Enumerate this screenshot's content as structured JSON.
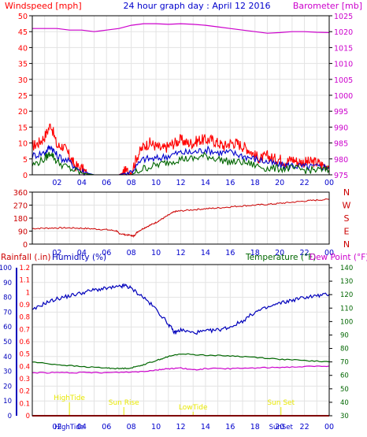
{
  "colors": {
    "wind": "#ff0000",
    "gust": "#dd0000",
    "avg": "#0000cc",
    "baro": "#cc00cc",
    "dir": "#cc0000",
    "humidity": "#0000bb",
    "temperature": "#006600",
    "dewpoint": "#cc00cc",
    "rain": "#ff0000",
    "events": "#e8e800",
    "gridline": "#e3e3e3",
    "frame": "#000000"
  },
  "top": {
    "left_label": "Windspeed [mph]",
    "title": "24 hour graph day : April 12 2016",
    "right_label": "Barometer [mb]",
    "wind_ticks": [
      "0",
      "5",
      "10",
      "15",
      "20",
      "25",
      "30",
      "35",
      "40",
      "45",
      "50"
    ],
    "baro_ticks": [
      "975",
      "980",
      "985",
      "990",
      "995",
      "1000",
      "1005",
      "1010",
      "1015",
      "1020",
      "1025"
    ],
    "hour_ticks": [
      "02",
      "04",
      "06",
      "08",
      "10",
      "12",
      "14",
      "16",
      "18",
      "20",
      "22",
      "00"
    ]
  },
  "mid": {
    "deg_ticks": [
      "0",
      "90",
      "180",
      "270",
      "360"
    ],
    "compass": [
      "N",
      "W",
      "S",
      "E",
      "N"
    ],
    "hour_ticks": [
      "02",
      "04",
      "06",
      "08",
      "10",
      "12",
      "14",
      "16",
      "18",
      "20",
      "22",
      "00"
    ]
  },
  "bottom": {
    "label_rain": "Rainfall (.in)",
    "label_hum": "Humidity (%)",
    "label_temp": "Temperature (°F)",
    "label_dew": "Dew Point (°F)",
    "rain_ticks": [
      "0",
      "0.1",
      "0.2",
      "0.3",
      "0.4",
      "0.5",
      "0.6",
      "0.7",
      "0.8",
      "0.9",
      "1",
      "1.1",
      "1.2"
    ],
    "hum_ticks": [
      "0",
      "10",
      "20",
      "30",
      "40",
      "50",
      "60",
      "70",
      "80",
      "90",
      "100"
    ],
    "temp_ticks": [
      "30",
      "40",
      "50",
      "60",
      "70",
      "80",
      "90",
      "100",
      "110",
      "120",
      "130",
      "140"
    ],
    "hour_ticks": [
      "02",
      "04",
      "06",
      "08",
      "10",
      "12",
      "14",
      "16",
      "18",
      "20",
      "22",
      "00"
    ],
    "events": [
      {
        "label": "HighTide",
        "hour": 3.0,
        "row": 0
      },
      {
        "label": "Sun Rise",
        "hour": 7.4,
        "row": 1
      },
      {
        "label": "LowTide",
        "hour": 13.0,
        "row": 2
      },
      {
        "label": "Sun Set",
        "hour": 20.1,
        "row": 1
      }
    ],
    "bottom_events": [
      {
        "label": "HighTide",
        "hour": 3.0
      },
      {
        "label": "SunSet",
        "hour": 20.1
      }
    ]
  },
  "chart_data": [
    {
      "type": "line",
      "title": "24 hour graph day : April 12 2016",
      "xlabel": "",
      "ylabel": "Windspeed [mph]",
      "y2label": "Barometer [mb]",
      "ylim": [
        0,
        50
      ],
      "y2lim": [
        975,
        1025
      ],
      "series": [
        {
          "name": "Windspeed [mph]",
          "axis": "left",
          "points": [
            [
              0,
              9
            ],
            [
              0.5,
              10
            ],
            [
              1,
              12
            ],
            [
              1.5,
              16
            ],
            [
              2,
              9
            ],
            [
              2.5,
              9
            ],
            [
              3,
              6
            ],
            [
              3.4,
              3
            ],
            [
              4,
              2
            ],
            [
              4.5,
              0
            ],
            [
              5,
              0
            ],
            [
              6,
              0
            ],
            [
              7,
              0
            ],
            [
              7.5,
              1
            ],
            [
              8,
              1
            ],
            [
              8.5,
              6
            ],
            [
              9,
              9
            ],
            [
              9.5,
              10
            ],
            [
              10,
              9
            ],
            [
              10.5,
              8
            ],
            [
              11,
              9
            ],
            [
              11.5,
              10
            ],
            [
              12,
              11
            ],
            [
              12.5,
              10
            ],
            [
              13,
              10
            ],
            [
              13.5,
              11
            ],
            [
              14,
              11
            ],
            [
              14.5,
              11
            ],
            [
              15,
              10
            ],
            [
              15.5,
              9
            ],
            [
              16,
              10
            ],
            [
              16.5,
              10
            ],
            [
              17,
              9
            ],
            [
              17.5,
              8
            ],
            [
              18,
              6
            ],
            [
              18.5,
              5
            ],
            [
              19,
              6
            ],
            [
              19.5,
              5
            ],
            [
              20,
              5
            ],
            [
              20.5,
              4
            ],
            [
              21,
              5
            ],
            [
              21.5,
              4
            ],
            [
              22,
              4
            ],
            [
              22.5,
              4
            ],
            [
              23,
              4
            ],
            [
              23.5,
              3
            ],
            [
              24,
              3
            ]
          ]
        },
        {
          "name": "Average",
          "axis": "left",
          "points": [
            [
              0,
              6
            ],
            [
              1,
              7
            ],
            [
              1.5,
              9
            ],
            [
              2,
              6
            ],
            [
              3,
              4
            ],
            [
              4,
              1
            ],
            [
              5,
              0
            ],
            [
              7,
              0
            ],
            [
              8,
              1
            ],
            [
              9,
              5
            ],
            [
              10,
              5
            ],
            [
              11,
              6
            ],
            [
              12,
              7
            ],
            [
              13,
              7
            ],
            [
              14,
              8
            ],
            [
              15,
              7
            ],
            [
              16,
              7
            ],
            [
              17,
              6
            ],
            [
              18,
              5
            ],
            [
              19,
              4
            ],
            [
              20,
              3
            ],
            [
              21,
              3
            ],
            [
              22,
              2.5
            ],
            [
              23,
              2.5
            ],
            [
              24,
              2.5
            ]
          ]
        },
        {
          "name": "Gust",
          "axis": "left",
          "points": [
            [
              0,
              3
            ],
            [
              1,
              5
            ],
            [
              1.5,
              7
            ],
            [
              2,
              4
            ],
            [
              3,
              2
            ],
            [
              4,
              0.5
            ],
            [
              5,
              0
            ],
            [
              8,
              0
            ],
            [
              9,
              2
            ],
            [
              10,
              3
            ],
            [
              11,
              4
            ],
            [
              12,
              5
            ],
            [
              13,
              5
            ],
            [
              14,
              6
            ],
            [
              15,
              5
            ],
            [
              16,
              4
            ],
            [
              17,
              4
            ],
            [
              18,
              3
            ],
            [
              19,
              2
            ],
            [
              20,
              2
            ],
            [
              21,
              2
            ],
            [
              22,
              1.5
            ],
            [
              23,
              1.5
            ],
            [
              24,
              1.5
            ]
          ]
        },
        {
          "name": "Barometer [mb]",
          "axis": "right",
          "points": [
            [
              0,
              1021
            ],
            [
              1,
              1021
            ],
            [
              2,
              1021
            ],
            [
              3,
              1020.5
            ],
            [
              4,
              1020.5
            ],
            [
              5,
              1020
            ],
            [
              6,
              1020.5
            ],
            [
              7,
              1021
            ],
            [
              8,
              1022
            ],
            [
              9,
              1022.5
            ],
            [
              10,
              1022.5
            ],
            [
              11,
              1022.3
            ],
            [
              12,
              1022.5
            ],
            [
              13,
              1022.3
            ],
            [
              14,
              1022
            ],
            [
              15,
              1021.5
            ],
            [
              16,
              1021
            ],
            [
              17,
              1020.5
            ],
            [
              18,
              1020
            ],
            [
              19,
              1019.5
            ],
            [
              20,
              1019.7
            ],
            [
              21,
              1020
            ],
            [
              22,
              1020
            ],
            [
              23,
              1019.8
            ],
            [
              24,
              1019.7
            ]
          ]
        }
      ]
    },
    {
      "type": "line",
      "title": "",
      "xlabel": "",
      "ylabel": "",
      "ylim": [
        0,
        360
      ],
      "series": [
        {
          "name": "",
          "points": [
            [
              0,
              108
            ],
            [
              1,
              110
            ],
            [
              2,
              112
            ],
            [
              3,
              112
            ],
            [
              4,
              110
            ],
            [
              5,
              105
            ],
            [
              6,
              100
            ],
            [
              6.8,
              92
            ],
            [
              7,
              75
            ],
            [
              7.5,
              65
            ],
            [
              8,
              60
            ],
            [
              8.2,
              55
            ],
            [
              8.5,
              85
            ],
            [
              9,
              110
            ],
            [
              9.5,
              130
            ],
            [
              10,
              150
            ],
            [
              10.5,
              175
            ],
            [
              11,
              200
            ],
            [
              11.5,
              225
            ],
            [
              12,
              230
            ],
            [
              13,
              238
            ],
            [
              14,
              245
            ],
            [
              15,
              250
            ],
            [
              16,
              258
            ],
            [
              17,
              265
            ],
            [
              18,
              270
            ],
            [
              19,
              275
            ],
            [
              20,
              282
            ],
            [
              21,
              290
            ],
            [
              22,
              298
            ],
            [
              23,
              305
            ],
            [
              24,
              310
            ]
          ]
        }
      ]
    },
    {
      "type": "line",
      "title": "",
      "xlabel": "",
      "ylabel": "Rainfall (.in)",
      "y2label": "Temperature (°F)",
      "ylim": [
        0,
        1.2
      ],
      "y2lim": [
        30,
        140
      ],
      "series": [
        {
          "name": "Rainfall (.in)",
          "axis": "left",
          "points": [
            [
              0,
              0
            ],
            [
              24,
              0
            ]
          ]
        },
        {
          "name": "Humidity (%)",
          "axis": "humidity",
          "points": [
            [
              0,
              71
            ],
            [
              1,
              76
            ],
            [
              2,
              79
            ],
            [
              3,
              81
            ],
            [
              4,
              83
            ],
            [
              5,
              85
            ],
            [
              6,
              86
            ],
            [
              7,
              87
            ],
            [
              7.5,
              88
            ],
            [
              8,
              86
            ],
            [
              9,
              80
            ],
            [
              10,
              72
            ],
            [
              11,
              62
            ],
            [
              11.5,
              56
            ],
            [
              12,
              58
            ],
            [
              13,
              56
            ],
            [
              14,
              57
            ],
            [
              15,
              58
            ],
            [
              16,
              60
            ],
            [
              17,
              64
            ],
            [
              18,
              70
            ],
            [
              19,
              73
            ],
            [
              20,
              76
            ],
            [
              21,
              78
            ],
            [
              22,
              80
            ],
            [
              23,
              81
            ],
            [
              24,
              82
            ]
          ]
        },
        {
          "name": "Temperature (°F)",
          "axis": "right",
          "points": [
            [
              0,
              70
            ],
            [
              2,
              68
            ],
            [
              4,
              66.5
            ],
            [
              6,
              65.5
            ],
            [
              7,
              65
            ],
            [
              8,
              65.5
            ],
            [
              9,
              68
            ],
            [
              10,
              71
            ],
            [
              11,
              74
            ],
            [
              12,
              76
            ],
            [
              14,
              75
            ],
            [
              16,
              74.5
            ],
            [
              18,
              73.5
            ],
            [
              20,
              72
            ],
            [
              22,
              71
            ],
            [
              24,
              70
            ]
          ]
        },
        {
          "name": "Dew Point (°F)",
          "axis": "right",
          "points": [
            [
              0,
              62
            ],
            [
              2,
              62
            ],
            [
              4,
              62
            ],
            [
              6,
              62
            ],
            [
              8,
              62.5
            ],
            [
              9,
              63
            ],
            [
              10,
              64
            ],
            [
              11,
              65
            ],
            [
              12,
              65.5
            ],
            [
              13,
              64
            ],
            [
              14,
              65
            ],
            [
              16,
              65
            ],
            [
              18,
              65.5
            ],
            [
              20,
              66
            ],
            [
              22,
              66.5
            ],
            [
              24,
              67
            ]
          ]
        }
      ]
    }
  ]
}
